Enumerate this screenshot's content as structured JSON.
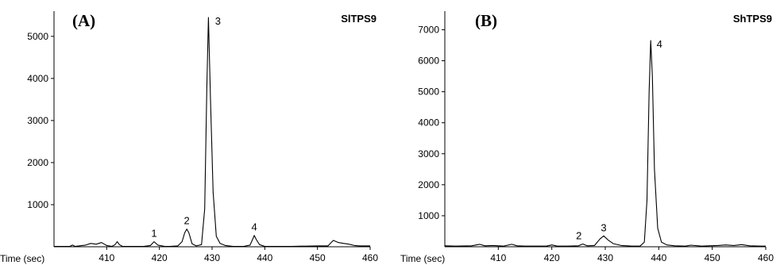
{
  "chart_data": [
    {
      "type": "line",
      "panel_letter": "(A)",
      "title": "SlTPS9",
      "xlabel": "Time (sec)",
      "xlim": [
        400,
        460
      ],
      "ylim": [
        0,
        5600
      ],
      "xticks": [
        410,
        420,
        430,
        440,
        450,
        460
      ],
      "yticks": [
        1000,
        2000,
        3000,
        4000,
        5000
      ],
      "peaks": [
        {
          "label": "1",
          "x": 419,
          "y": 120
        },
        {
          "label": "2",
          "x": 425.2,
          "y": 420
        },
        {
          "label": "3",
          "x": 429.3,
          "y": 5450
        },
        {
          "label": "4",
          "x": 438,
          "y": 270
        }
      ],
      "series": [
        {
          "x": [
            400,
            403,
            403.5,
            404,
            406,
            407,
            408,
            409,
            410,
            411,
            411.6,
            412,
            412.4,
            413,
            415,
            417,
            418.3,
            419,
            419.7,
            421,
            422,
            423.5,
            424.3,
            424.8,
            425.2,
            425.6,
            426.2,
            427,
            428,
            428.6,
            429,
            429.3,
            429.7,
            430.2,
            430.8,
            431.5,
            432.5,
            434,
            436,
            437.2,
            437.7,
            438,
            438.4,
            439,
            440,
            445,
            450,
            452,
            453,
            454,
            455,
            456,
            457,
            458,
            459,
            460
          ],
          "y": [
            10,
            10,
            40,
            10,
            40,
            80,
            60,
            100,
            30,
            10,
            50,
            120,
            50,
            10,
            10,
            10,
            30,
            120,
            40,
            10,
            10,
            20,
            120,
            330,
            420,
            330,
            70,
            20,
            50,
            900,
            3800,
            5450,
            3500,
            1300,
            250,
            80,
            30,
            10,
            10,
            40,
            180,
            270,
            170,
            50,
            10,
            10,
            20,
            20,
            150,
            100,
            80,
            60,
            30,
            20,
            20,
            20
          ]
        }
      ]
    },
    {
      "type": "line",
      "panel_letter": "(B)",
      "title": "ShTPS9",
      "xlabel": "Time (sec)",
      "xlim": [
        400,
        460
      ],
      "ylim": [
        0,
        7600
      ],
      "xticks": [
        410,
        420,
        430,
        440,
        450,
        460
      ],
      "yticks": [
        1000,
        2000,
        3000,
        4000,
        5000,
        6000,
        7000
      ],
      "peaks": [
        {
          "label": "2",
          "x": 425.8,
          "y": 90
        },
        {
          "label": "3",
          "x": 429.7,
          "y": 350
        },
        {
          "label": "4",
          "x": 438.5,
          "y": 6650
        }
      ],
      "series": [
        {
          "x": [
            400,
            402,
            405,
            406.5,
            407.5,
            409,
            411,
            412.5,
            413.5,
            415,
            417,
            419,
            420,
            421,
            423,
            425,
            425.8,
            426.6,
            428,
            429,
            429.7,
            430.5,
            431.5,
            433,
            435,
            436.5,
            437.3,
            437.8,
            438.2,
            438.5,
            438.8,
            439.2,
            439.8,
            440.5,
            441.5,
            443,
            445,
            446,
            448,
            451,
            452.5,
            454,
            455.5,
            457,
            459,
            460
          ],
          "y": [
            30,
            20,
            30,
            80,
            30,
            40,
            20,
            80,
            30,
            20,
            20,
            20,
            60,
            20,
            20,
            30,
            90,
            30,
            40,
            250,
            350,
            220,
            100,
            40,
            20,
            20,
            150,
            1500,
            5000,
            6650,
            5500,
            2500,
            600,
            150,
            60,
            30,
            20,
            50,
            20,
            40,
            60,
            40,
            70,
            30,
            20,
            20
          ]
        }
      ]
    }
  ]
}
